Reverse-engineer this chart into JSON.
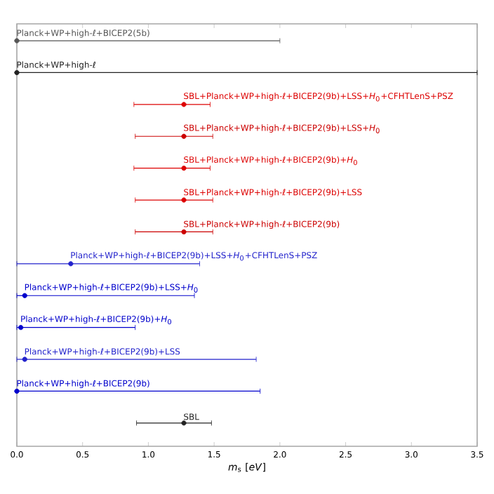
{
  "chart_data": {
    "type": "scatter",
    "orientation": "horizontal",
    "xlabel": "*m*$_{s}$ [*eV*]",
    "tick_labels": "x",
    "categories": [
      "Planck+WP+high-ℓ+BICEP2(5b)",
      "Planck+WP+high-ℓ",
      "SBL+Planck+WP+high-ℓ+BICEP2(9b)+LSS+*H*$_{0}$+CFHTLenS+PSZ",
      "SBL+Planck+WP+high-ℓ+BICEP2(9b)+LSS+*H*$_{0}$",
      "SBL+Planck+WP+high-ℓ+BICEP2(9b)+*H*$_{0}$",
      "SBL+Planck+WP+high-ℓ+BICEP2(9b)+LSS",
      "SBL+Planck+WP+high-ℓ+BICEP2(9b)",
      "Planck+WP+high-ℓ+BICEP2(9b)+LSS+*H*$_{0}$+CFHTLenS+PSZ",
      "Planck+WP+high-ℓ+BICEP2(9b)+LSS+*H*$_{0}$",
      "Planck+WP+high-ℓ+BICEP2(9b)+*H*$_{0}$",
      "Planck+WP+high-ℓ+BICEP2(9b)+LSS",
      "Planck+WP+high-ℓ+BICEP2(9b)",
      "SBL"
    ],
    "series": [
      {
        "values": [
          0,
          0,
          1.27,
          1.27,
          1.27,
          1.27,
          1.27,
          0.41,
          0.06,
          0.03,
          0.06,
          0,
          1.27
        ],
        "colors": [
          "#555555",
          "#222222",
          "#dd0000",
          "#cc0000",
          "#dd0000",
          "#dd0000",
          "#cc0000",
          "#2222cc",
          "#0000cc",
          "#0000cc",
          "#2222cc",
          "#0000cc",
          "#222222"
        ],
        "errors": [
          [
            0,
            2.0
          ],
          [
            0,
            3.5
          ],
          [
            0.89,
            1.47
          ],
          [
            0.9,
            1.49
          ],
          [
            0.89,
            1.47
          ],
          [
            0.9,
            1.49
          ],
          [
            0.9,
            1.49
          ],
          [
            0,
            1.39
          ],
          [
            0,
            1.35
          ],
          [
            0,
            0.9
          ],
          [
            0,
            1.82
          ],
          [
            0,
            1.85
          ],
          [
            0.91,
            1.48
          ]
        ]
      }
    ],
    "xlim": [
      0,
      3.5
    ],
    "xticks": [
      {
        "value": 0,
        "label": "0.0"
      },
      {
        "value": 0.5,
        "label": "0.5"
      },
      {
        "value": 1,
        "label": "1.0"
      },
      {
        "value": 1.5,
        "label": "1.5"
      },
      {
        "value": 2,
        "label": "2.0"
      },
      {
        "value": 2.5,
        "label": "2.5"
      },
      {
        "value": 3,
        "label": "3.0"
      },
      {
        "value": 3.5,
        "label": "3.5"
      }
    ]
  }
}
